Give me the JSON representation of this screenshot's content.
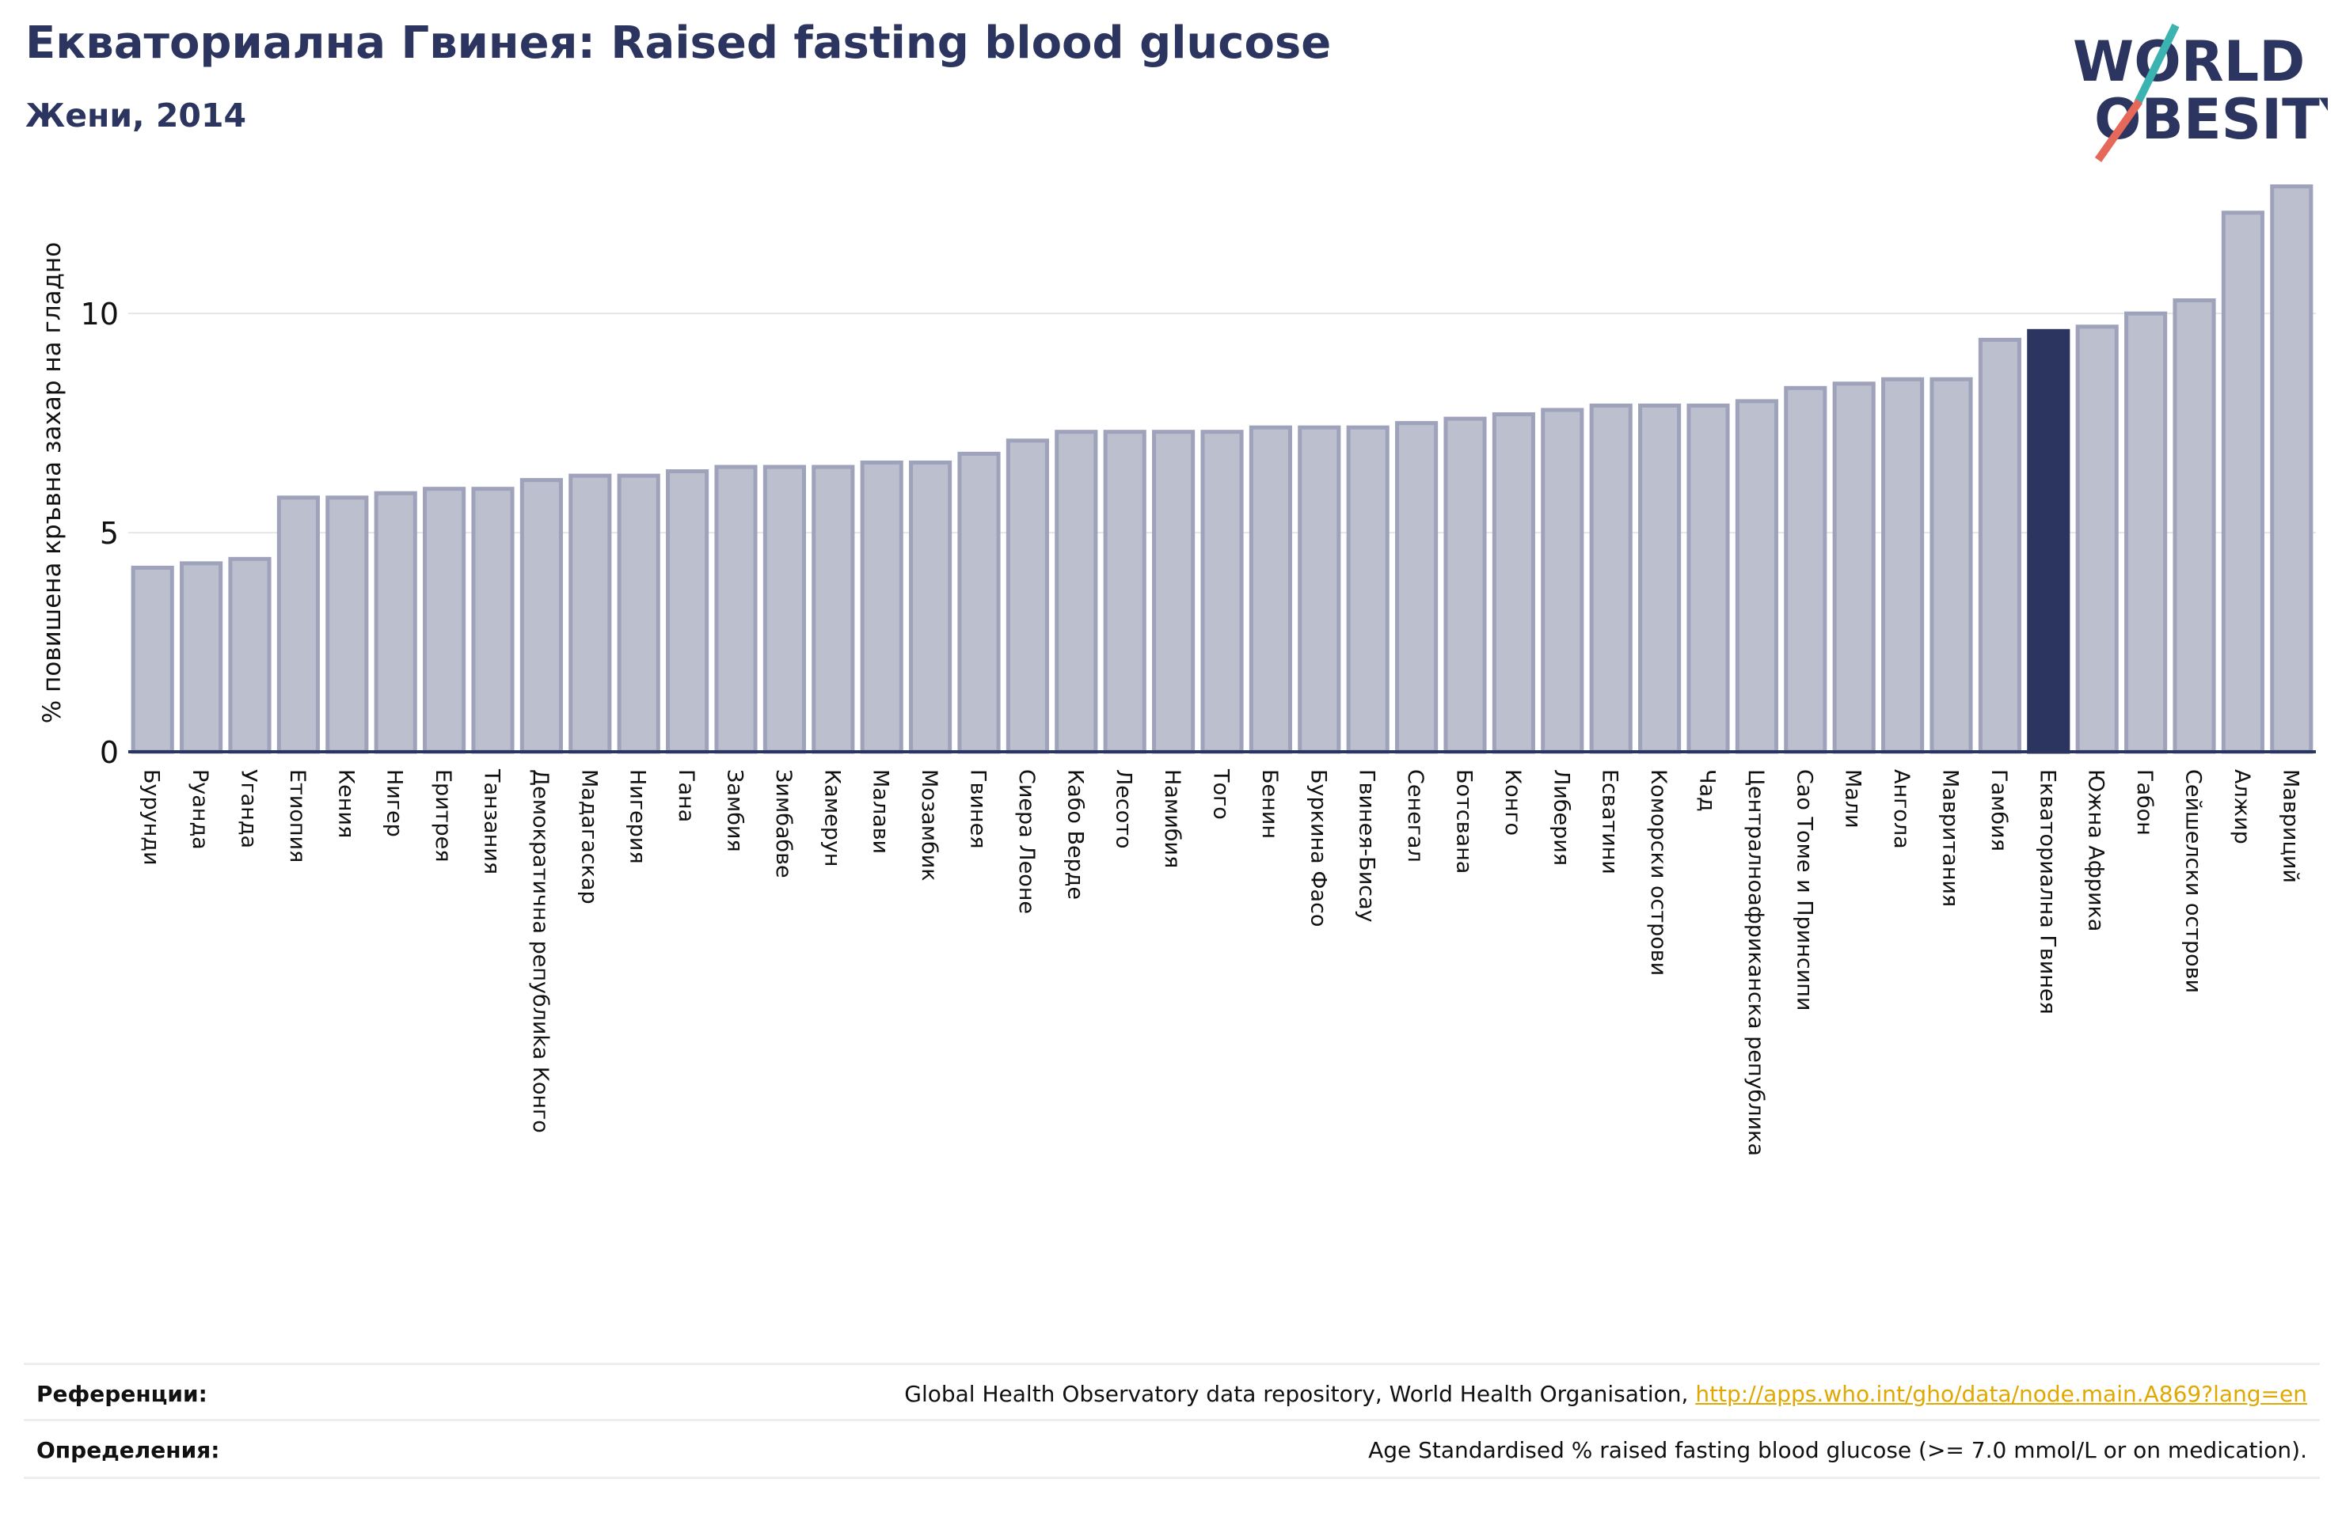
{
  "header": {
    "title": "Екваториална Гвинея: Raised fasting blood glucose",
    "subtitle": "Жени, 2014"
  },
  "logo": {
    "line1": "WORLD",
    "line2": "OBESITY"
  },
  "colors": {
    "bar": "#bcbfcd",
    "bar_border": "#9ea2ba",
    "highlight": "#2b3560",
    "grid": "#e6e6e6",
    "axis": "#2b3560"
  },
  "chart_data": {
    "type": "bar",
    "ylabel": "% повишена кръвна захар на гладно",
    "ylim": [
      0,
      13
    ],
    "yticks": [
      0,
      5,
      10
    ],
    "highlight": "Екваториална Гвинея",
    "categories": [
      "Бурунди",
      "Руанда",
      "Уганда",
      "Етиопия",
      "Кения",
      "Нигер",
      "Еритрея",
      "Танзания",
      "Демократична републиka Конго",
      "Мадагаскар",
      "Нигерия",
      "Гана",
      "Замбия",
      "Зимбабве",
      "Камерун",
      "Малави",
      "Мозамбик",
      "Гвинея",
      "Сиера Леоне",
      "Кабо Верде",
      "Лесото",
      "Намибия",
      "Того",
      "Бенин",
      "Буркина Фасо",
      "Гвинея-Бисау",
      "Сенегал",
      "Ботсвана",
      "Конго",
      "Либерия",
      "Есватини",
      "Коморски острови",
      "Чад",
      "Централноафриканска република",
      "Сао Томе и Принсипи",
      "Мали",
      "Ангола",
      "Мавритания",
      "Гамбия",
      "Екваториална Гвинея",
      "Южна Африка",
      "Габон",
      "Сейшелски острови",
      "Алжир",
      "Мавриций"
    ],
    "values": [
      4.2,
      4.3,
      4.4,
      5.8,
      5.8,
      5.9,
      6.0,
      6.0,
      6.2,
      6.3,
      6.3,
      6.4,
      6.5,
      6.5,
      6.5,
      6.6,
      6.6,
      6.8,
      7.1,
      7.3,
      7.3,
      7.3,
      7.3,
      7.4,
      7.4,
      7.4,
      7.5,
      7.6,
      7.7,
      7.8,
      7.9,
      7.9,
      7.9,
      8.0,
      8.3,
      8.4,
      8.5,
      8.5,
      9.4,
      9.6,
      9.7,
      10.0,
      10.3,
      12.3,
      12.9
    ]
  },
  "footer": {
    "refs_label": "Референции:",
    "refs_text": "Global Health Observatory data repository, World Health Organisation, ",
    "refs_link": "http://apps.who.int/gho/data/node.main.A869?lang=en",
    "defs_label": "Определения:",
    "defs_text": "Age Standardised % raised fasting blood glucose (>= 7.0 mmol/L or on medication)."
  }
}
